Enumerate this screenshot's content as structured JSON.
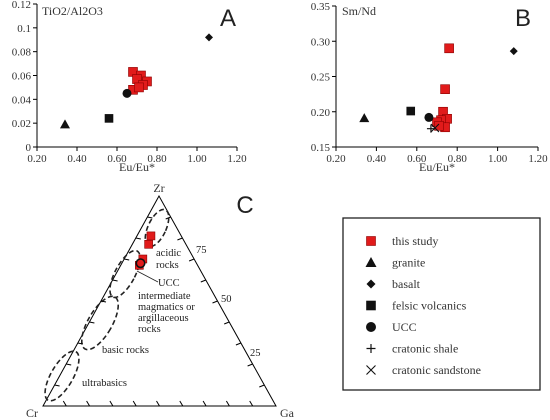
{
  "symbols": {
    "this_study": {
      "shape": "square",
      "color": "#e11b1b"
    },
    "granite": {
      "shape": "triangle",
      "color": "#111111"
    },
    "basalt": {
      "shape": "diamond",
      "color": "#111111"
    },
    "felsic_volcanics": {
      "shape": "square",
      "color": "#111111"
    },
    "ucc": {
      "shape": "circle",
      "color": "#111111"
    },
    "cratonic_shale": {
      "shape": "plus",
      "color": "#111111"
    },
    "cratonic_sandstone": {
      "shape": "cross",
      "color": "#111111"
    }
  },
  "chart_data": [
    {
      "type": "scatter",
      "panel": "A",
      "title": "TiO2/Al2O3",
      "xlabel": "Eu/Eu*",
      "ylabel": "",
      "xlim": [
        0.2,
        1.2
      ],
      "ylim": [
        0,
        0.12
      ],
      "x_ticks": [
        "0.20",
        "0.40",
        "0.60",
        "0.80",
        "1.00",
        "1.20"
      ],
      "y_ticks": [
        "0",
        "0.02",
        "0.04",
        "0.06",
        "0.08",
        "0.1",
        "0.12"
      ],
      "series": [
        {
          "name": "this study",
          "symbol": "this_study",
          "points": [
            [
              0.68,
              0.063
            ],
            [
              0.72,
              0.06
            ],
            [
              0.75,
              0.055
            ],
            [
              0.7,
              0.057
            ],
            [
              0.73,
              0.052
            ],
            [
              0.68,
              0.048
            ],
            [
              0.71,
              0.05
            ]
          ]
        },
        {
          "name": "granite",
          "symbol": "granite",
          "points": [
            [
              0.34,
              0.019
            ]
          ]
        },
        {
          "name": "basalt",
          "symbol": "basalt",
          "points": [
            [
              1.06,
              0.092
            ]
          ]
        },
        {
          "name": "felsic volcanics",
          "symbol": "felsic_volcanics",
          "points": [
            [
              0.56,
              0.024
            ]
          ]
        },
        {
          "name": "UCC",
          "symbol": "ucc",
          "points": [
            [
              0.65,
              0.045
            ]
          ]
        }
      ]
    },
    {
      "type": "scatter",
      "panel": "B",
      "title": "Sm/Nd",
      "xlabel": "Eu/Eu*",
      "ylabel": "",
      "xlim": [
        0.2,
        1.2
      ],
      "ylim": [
        0.15,
        0.35
      ],
      "x_ticks": [
        "0.20",
        "0.40",
        "0.60",
        "0.80",
        "1.00",
        "1.20"
      ],
      "y_ticks": [
        "0.15",
        "0.20",
        "0.25",
        "0.30",
        "0.35"
      ],
      "series": [
        {
          "name": "this study",
          "symbol": "this_study",
          "points": [
            [
              0.76,
              0.29
            ],
            [
              0.74,
              0.232
            ],
            [
              0.73,
              0.2
            ],
            [
              0.75,
              0.19
            ],
            [
              0.72,
              0.188
            ],
            [
              0.7,
              0.185
            ],
            [
              0.74,
              0.178
            ],
            [
              0.71,
              0.18
            ]
          ]
        },
        {
          "name": "granite",
          "symbol": "granite",
          "points": [
            [
              0.34,
              0.191
            ]
          ]
        },
        {
          "name": "basalt",
          "symbol": "basalt",
          "points": [
            [
              1.08,
              0.286
            ]
          ]
        },
        {
          "name": "felsic volcanics",
          "symbol": "felsic_volcanics",
          "points": [
            [
              0.57,
              0.201
            ]
          ]
        },
        {
          "name": "UCC",
          "symbol": "ucc",
          "points": [
            [
              0.66,
              0.192
            ]
          ]
        },
        {
          "name": "cratonic shale",
          "symbol": "cratonic_shale",
          "points": [
            [
              0.67,
              0.176
            ]
          ]
        },
        {
          "name": "cratonic sandstone",
          "symbol": "cratonic_sandstone",
          "points": [
            [
              0.69,
              0.177
            ]
          ]
        }
      ]
    },
    {
      "type": "ternary",
      "panel": "C",
      "vertices": [
        "Zr",
        "Cr",
        "Ga"
      ],
      "zr_ticks": [
        "75",
        "50",
        "25"
      ],
      "fields": [
        {
          "label": "acidic rocks",
          "zr_range": [
            75,
            100
          ]
        },
        {
          "label": "intermediate magmatics or argillaceous rocks",
          "zr_range": [
            55,
            80
          ]
        },
        {
          "label": "basic rocks",
          "zr_range": [
            35,
            58
          ]
        },
        {
          "label": "ultrabasics",
          "zr_range": [
            5,
            25
          ]
        }
      ],
      "points": [
        {
          "symbol": "this_study",
          "zr": 81,
          "cr": 13,
          "ga": 6
        },
        {
          "symbol": "this_study",
          "zr": 77,
          "cr": 16,
          "ga": 7
        },
        {
          "symbol": "this_study",
          "zr": 70,
          "cr": 22,
          "ga": 8
        },
        {
          "symbol": "this_study",
          "zr": 67,
          "cr": 25,
          "ga": 8
        },
        {
          "symbol": "ucc",
          "zr": 68,
          "cr": 24,
          "ga": 8
        }
      ],
      "ucc_label": "UCC"
    }
  ],
  "panel_a_letter": "A",
  "panel_b_letter": "B",
  "panel_c_letter": "C",
  "legend": {
    "items": [
      {
        "symbol": "this_study",
        "label": "this study"
      },
      {
        "symbol": "granite",
        "label": "granite"
      },
      {
        "symbol": "basalt",
        "label": "basalt"
      },
      {
        "symbol": "felsic_volcanics",
        "label": "felsic volcanics"
      },
      {
        "symbol": "ucc",
        "label": "UCC"
      },
      {
        "symbol": "cratonic_shale",
        "label": "cratonic shale"
      },
      {
        "symbol": "cratonic_sandstone",
        "label": "cratonic sandstone"
      }
    ]
  }
}
